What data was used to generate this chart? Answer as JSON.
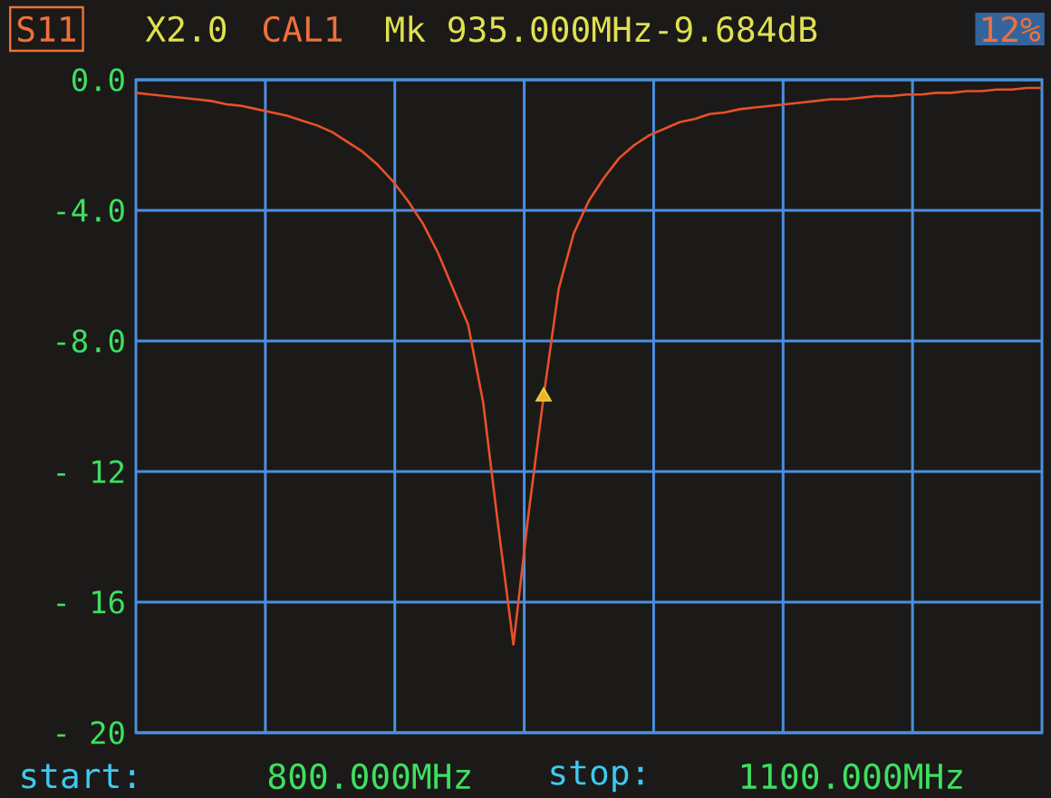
{
  "chart_data": {
    "type": "line",
    "title": "S11",
    "categories": [
      null,
      null,
      null,
      null,
      null,
      null,
      null,
      null,
      null,
      null,
      null,
      null,
      null,
      null,
      null,
      null,
      null,
      null,
      null,
      null,
      null,
      null,
      null,
      null,
      null,
      null,
      null,
      null,
      null,
      null,
      null,
      null,
      null,
      null,
      null,
      null,
      null,
      null,
      null,
      null,
      null,
      null,
      null,
      null,
      null,
      null,
      null,
      null,
      null,
      null,
      null,
      null,
      null,
      null,
      null,
      null,
      null,
      null,
      null,
      null,
      null
    ],
    "series": [
      {
        "color": "#e8502a",
        "values": [
          -0.4,
          -0.45,
          -0.5,
          -0.55,
          -0.6,
          -0.65,
          -0.75,
          -0.8,
          -0.9,
          -1.0,
          -1.1,
          -1.25,
          -1.4,
          -1.6,
          -1.9,
          -2.2,
          -2.6,
          -3.1,
          -3.7,
          -4.4,
          -5.3,
          -6.4,
          -7.5,
          -9.9,
          -13.7,
          -17.3,
          -13.3,
          -9.7,
          -6.4,
          -4.7,
          -3.7,
          -3.0,
          -2.4,
          -2.0,
          -1.7,
          -1.5,
          -1.3,
          -1.2,
          -1.05,
          -1.0,
          -0.9,
          -0.85,
          -0.8,
          -0.75,
          -0.7,
          -0.65,
          -0.6,
          -0.6,
          -0.55,
          -0.5,
          -0.5,
          -0.45,
          -0.45,
          -0.4,
          -0.4,
          -0.35,
          -0.35,
          -0.3,
          -0.3,
          -0.25,
          -0.25
        ]
      },
      {
        "type": "scatter",
        "marker": "triangle",
        "color": "#e8d040",
        "values": [
          null,
          null,
          null,
          null,
          null,
          null,
          null,
          null,
          null,
          null,
          null,
          null,
          null,
          null,
          null,
          null,
          null,
          null,
          null,
          null,
          null,
          null,
          null,
          null,
          null,
          null,
          null,
          -9.7,
          null,
          null,
          null,
          null,
          null,
          null,
          null,
          null,
          null,
          null,
          null,
          null,
          null,
          null,
          null,
          null,
          null,
          null,
          null,
          null,
          null,
          null,
          null,
          null,
          null,
          null,
          null,
          null,
          null,
          null,
          null,
          null,
          null
        ]
      }
    ],
    "ylim": [
      -20,
      0
    ],
    "yticks": [
      {
        "value": 0,
        "label": "0.0"
      },
      {
        "value": -4,
        "label": "-4.0"
      },
      {
        "value": -8,
        "label": "-8.0"
      },
      {
        "value": -12,
        "label": "- 12"
      },
      {
        "value": -16,
        "label": "- 16"
      },
      {
        "value": -20,
        "label": "- 20"
      }
    ],
    "grid": true,
    "tick_labels": "y",
    "marker": "none",
    "line_style": "solid",
    "annotations": [
      "X2.0",
      "CAL1",
      "Mk 935.000MHz-9.684dB",
      "12%",
      "start:",
      "800.000MHz",
      "stop:",
      "1100.000MHz"
    ]
  }
}
